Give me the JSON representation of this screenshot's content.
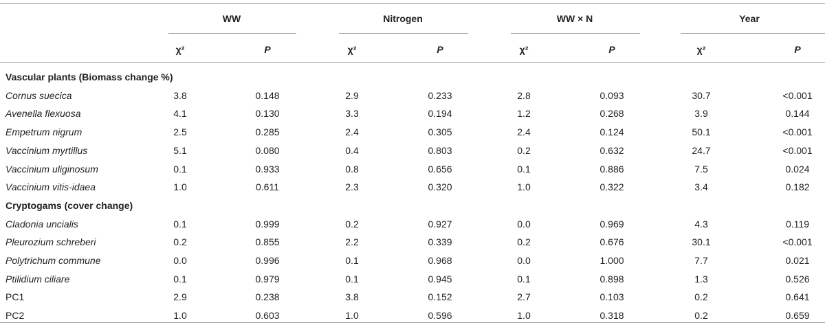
{
  "table": {
    "groups": [
      "WW",
      "Nitrogen",
      "WW × N",
      "Year"
    ],
    "subheaders": [
      "χ²",
      "P",
      "χ²",
      "P",
      "χ²",
      "P",
      "χ²",
      "P"
    ],
    "sections": [
      {
        "title": "Vascular plants (Biomass change %)",
        "rows": [
          [
            "Cornus suecica",
            "3.8",
            "0.148",
            "2.9",
            "0.233",
            "2.8",
            "0.093",
            "30.7",
            "<0.001"
          ],
          [
            "Avenella flexuosa",
            "4.1",
            "0.130",
            "3.3",
            "0.194",
            "1.2",
            "0.268",
            "3.9",
            "0.144"
          ],
          [
            "Empetrum nigrum",
            "2.5",
            "0.285",
            "2.4",
            "0.305",
            "2.4",
            "0.124",
            "50.1",
            "<0.001"
          ],
          [
            "Vaccinium myrtillus",
            "5.1",
            "0.080",
            "0.4",
            "0.803",
            "0.2",
            "0.632",
            "24.7",
            "<0.001"
          ],
          [
            "Vaccinium uliginosum",
            "0.1",
            "0.933",
            "0.8",
            "0.656",
            "0.1",
            "0.886",
            "7.5",
            "0.024"
          ],
          [
            "Vaccinium vitis-idaea",
            "1.0",
            "0.611",
            "2.3",
            "0.320",
            "1.0",
            "0.322",
            "3.4",
            "0.182"
          ]
        ]
      },
      {
        "title": "Cryptogams (cover change)",
        "rows": [
          [
            "Cladonia uncialis",
            "0.1",
            "0.999",
            "0.2",
            "0.927",
            "0.0",
            "0.969",
            "4.3",
            "0.119"
          ],
          [
            "Pleurozium schreberi",
            "0.2",
            "0.855",
            "2.2",
            "0.339",
            "0.2",
            "0.676",
            "30.1",
            "<0.001"
          ],
          [
            "Polytrichum commune",
            "0.0",
            "0.996",
            "0.1",
            "0.968",
            "0.0",
            "1.000",
            "7.7",
            "0.021"
          ],
          [
            "Ptilidium ciliare",
            "0.1",
            "0.979",
            "0.1",
            "0.945",
            "0.1",
            "0.898",
            "1.3",
            "0.526"
          ],
          [
            "PC1",
            "2.9",
            "0.238",
            "3.8",
            "0.152",
            "2.7",
            "0.103",
            "0.2",
            "0.641"
          ],
          [
            "PC2",
            "1.0",
            "0.603",
            "1.0",
            "0.596",
            "1.0",
            "0.318",
            "0.2",
            "0.659"
          ]
        ]
      }
    ]
  }
}
